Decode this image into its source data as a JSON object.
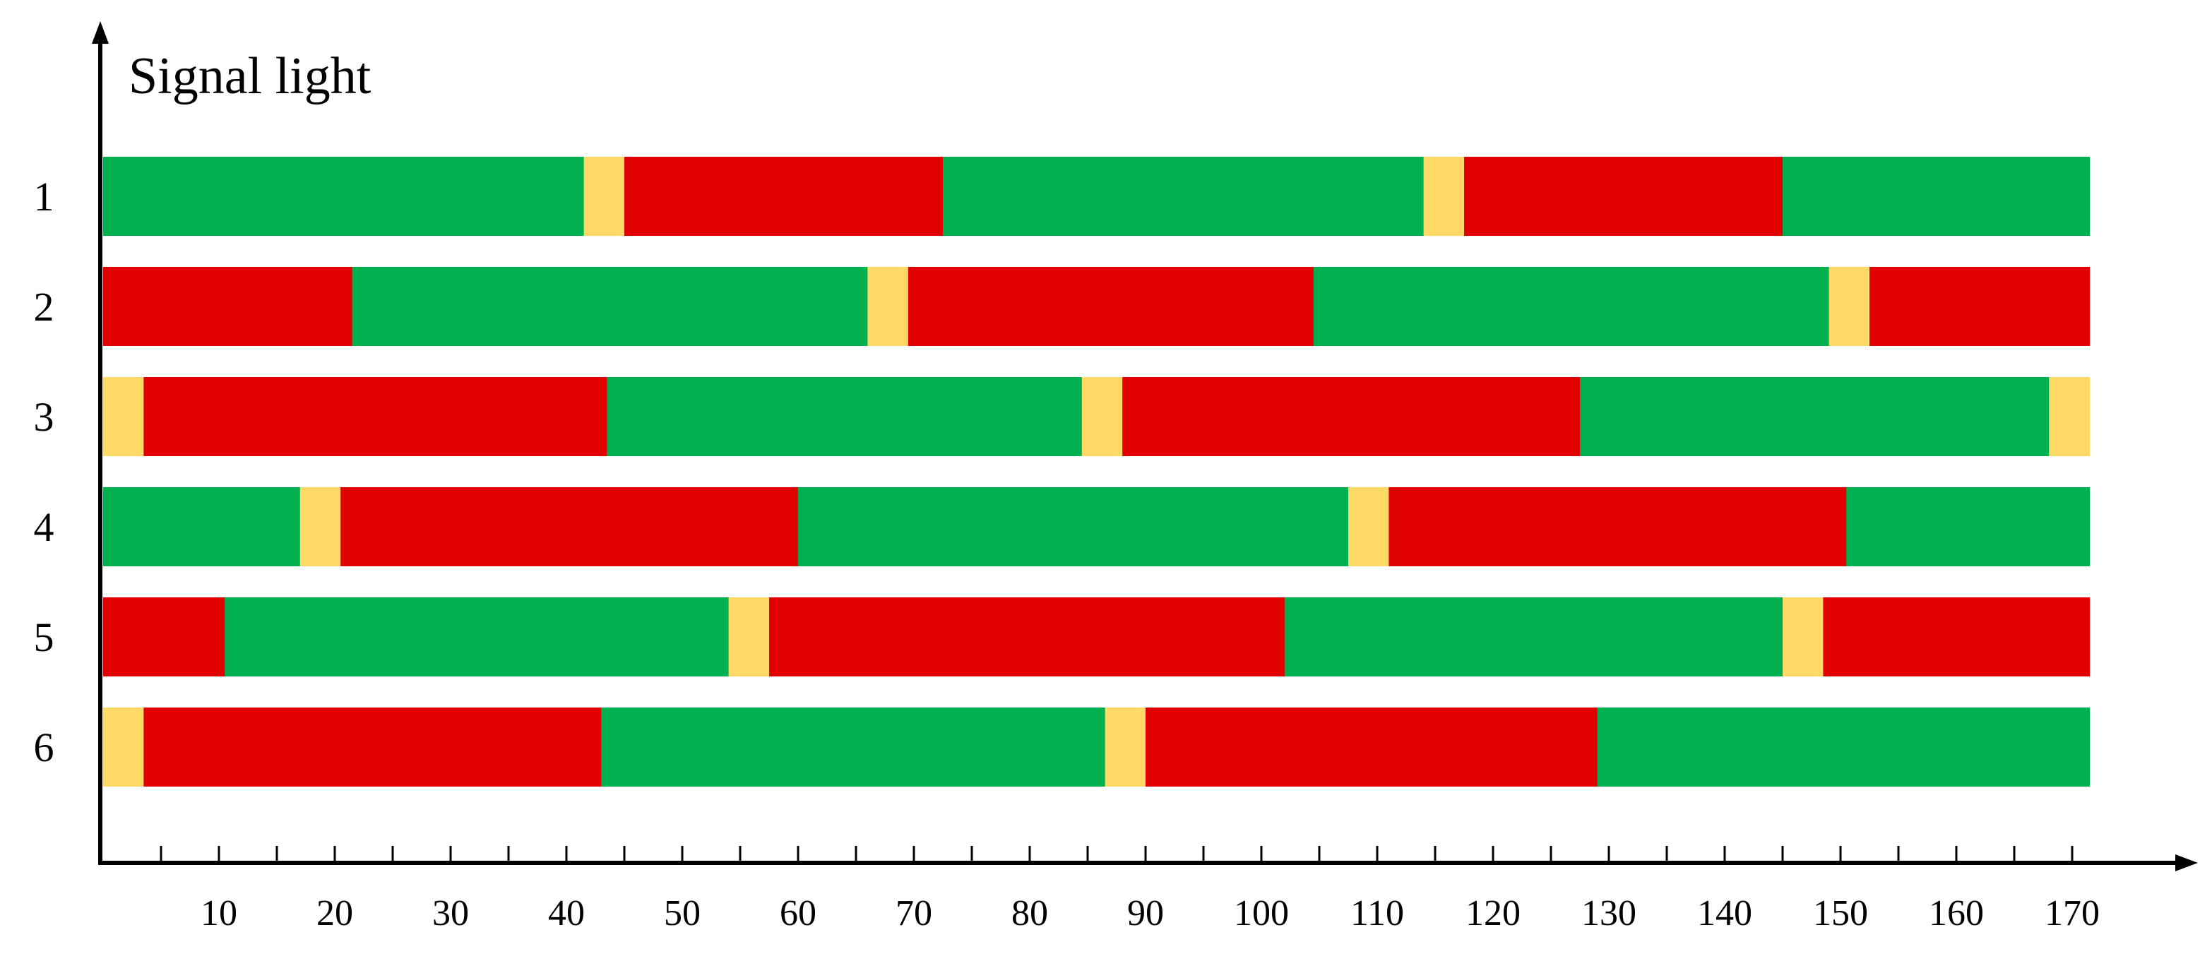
{
  "chart_data": {
    "type": "bar",
    "subtype": "timeline",
    "ylabel": "Signal light",
    "xlabel": "",
    "xlim": [
      0,
      176
    ],
    "x_ticks": [
      10,
      20,
      30,
      40,
      50,
      60,
      70,
      80,
      90,
      100,
      110,
      120,
      130,
      140,
      150,
      160,
      170
    ],
    "minor_tick_step": 5,
    "grid": false,
    "legend": "none",
    "colors": {
      "green": "#00b04f",
      "yellow": "#ffd966",
      "red": "#e00000"
    },
    "rows": [
      {
        "label": "1",
        "segments": [
          {
            "state": "green",
            "start": 0,
            "end": 41.5
          },
          {
            "state": "yellow",
            "start": 41.5,
            "end": 45
          },
          {
            "state": "red",
            "start": 45,
            "end": 72.5
          },
          {
            "state": "green",
            "start": 72.5,
            "end": 114
          },
          {
            "state": "yellow",
            "start": 114,
            "end": 117.5
          },
          {
            "state": "red",
            "start": 117.5,
            "end": 145
          },
          {
            "state": "green",
            "start": 145,
            "end": 171.5
          }
        ]
      },
      {
        "label": "2",
        "segments": [
          {
            "state": "red",
            "start": 0,
            "end": 21.5
          },
          {
            "state": "green",
            "start": 21.5,
            "end": 66
          },
          {
            "state": "yellow",
            "start": 66,
            "end": 69.5
          },
          {
            "state": "red",
            "start": 69.5,
            "end": 104.5
          },
          {
            "state": "green",
            "start": 104.5,
            "end": 149
          },
          {
            "state": "yellow",
            "start": 149,
            "end": 152.5
          },
          {
            "state": "red",
            "start": 152.5,
            "end": 171.5
          }
        ]
      },
      {
        "label": "3",
        "segments": [
          {
            "state": "yellow",
            "start": 0,
            "end": 3.5
          },
          {
            "state": "red",
            "start": 3.5,
            "end": 43.5
          },
          {
            "state": "green",
            "start": 43.5,
            "end": 84.5
          },
          {
            "state": "yellow",
            "start": 84.5,
            "end": 88
          },
          {
            "state": "red",
            "start": 88,
            "end": 127.5
          },
          {
            "state": "green",
            "start": 127.5,
            "end": 168
          },
          {
            "state": "yellow",
            "start": 168,
            "end": 171.5
          }
        ]
      },
      {
        "label": "4",
        "segments": [
          {
            "state": "green",
            "start": 0,
            "end": 17
          },
          {
            "state": "yellow",
            "start": 17,
            "end": 20.5
          },
          {
            "state": "red",
            "start": 20.5,
            "end": 60
          },
          {
            "state": "green",
            "start": 60,
            "end": 107.5
          },
          {
            "state": "yellow",
            "start": 107.5,
            "end": 111
          },
          {
            "state": "red",
            "start": 111,
            "end": 150.5
          },
          {
            "state": "green",
            "start": 150.5,
            "end": 171.5
          }
        ]
      },
      {
        "label": "5",
        "segments": [
          {
            "state": "red",
            "start": 0,
            "end": 10.5
          },
          {
            "state": "green",
            "start": 10.5,
            "end": 54
          },
          {
            "state": "yellow",
            "start": 54,
            "end": 57.5
          },
          {
            "state": "red",
            "start": 57.5,
            "end": 102
          },
          {
            "state": "green",
            "start": 102,
            "end": 145
          },
          {
            "state": "yellow",
            "start": 145,
            "end": 148.5
          },
          {
            "state": "red",
            "start": 148.5,
            "end": 171.5
          }
        ]
      },
      {
        "label": "6",
        "segments": [
          {
            "state": "yellow",
            "start": 0,
            "end": 3.5
          },
          {
            "state": "red",
            "start": 3.5,
            "end": 43
          },
          {
            "state": "green",
            "start": 43,
            "end": 86.5
          },
          {
            "state": "yellow",
            "start": 86.5,
            "end": 90
          },
          {
            "state": "red",
            "start": 90,
            "end": 129
          },
          {
            "state": "green",
            "start": 129,
            "end": 171.5
          }
        ]
      }
    ]
  }
}
